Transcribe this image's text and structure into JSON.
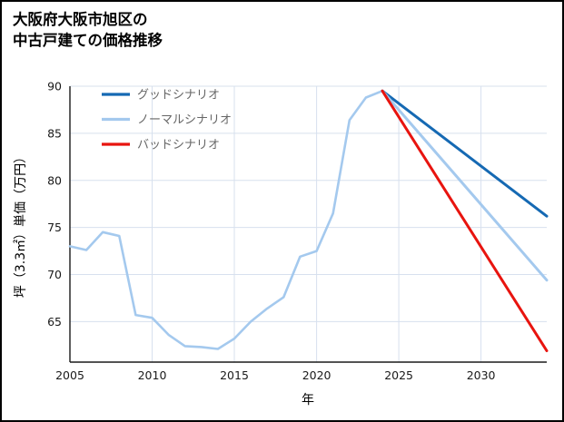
{
  "title": {
    "line1": "大阪府大阪市旭区の",
    "line2": "中古戸建ての価格推移"
  },
  "chart_data": {
    "type": "line",
    "title": "大阪府大阪市旭区の中古戸建ての価格推移",
    "xlabel": "年",
    "ylabel": "坪（3.3㎡）単価（万円）",
    "xlim": [
      2005,
      2034
    ],
    "ylim": [
      60.7,
      90
    ],
    "xticks": [
      2005,
      2010,
      2015,
      2020,
      2025,
      2030
    ],
    "yticks": [
      65,
      70,
      75,
      80,
      85,
      90
    ],
    "grid": true,
    "legend_position": "upper-left",
    "colors": {
      "grid": "#d7e0ee",
      "axis": "#1a1a1a",
      "good": "#1569b3",
      "normal": "#a4c9ee",
      "bad": "#e8140f"
    },
    "series": [
      {
        "id": "history",
        "label": "",
        "show_in_legend": false,
        "color": "#a4c9ee",
        "width": 2.6,
        "x": [
          2005,
          2006,
          2007,
          2008,
          2009,
          2010,
          2011,
          2012,
          2013,
          2014,
          2015,
          2016,
          2017,
          2018,
          2019,
          2020,
          2021,
          2022,
          2023,
          2024
        ],
        "y": [
          73.0,
          72.6,
          74.5,
          74.1,
          65.7,
          65.4,
          63.6,
          62.4,
          62.3,
          62.1,
          63.2,
          65.0,
          66.4,
          67.6,
          71.9,
          72.5,
          76.5,
          86.4,
          88.8,
          89.5
        ]
      },
      {
        "id": "good",
        "label": "グッドシナリオ",
        "show_in_legend": true,
        "color": "#1569b3",
        "width": 3,
        "x": [
          2024,
          2034
        ],
        "y": [
          89.5,
          76.2
        ]
      },
      {
        "id": "normal",
        "label": "ノーマルシナリオ",
        "show_in_legend": true,
        "color": "#a4c9ee",
        "width": 3,
        "x": [
          2024,
          2034
        ],
        "y": [
          89.5,
          69.4
        ]
      },
      {
        "id": "bad",
        "label": "バッドシナリオ",
        "show_in_legend": true,
        "color": "#e8140f",
        "width": 3,
        "x": [
          2024,
          2034
        ],
        "y": [
          89.5,
          61.9
        ]
      }
    ]
  }
}
